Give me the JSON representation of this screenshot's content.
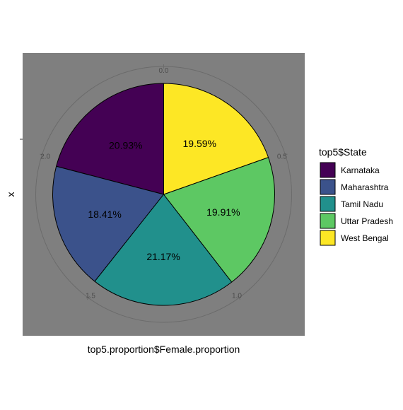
{
  "chart_data": {
    "type": "pie",
    "xlabel": "top5.proportion$Female.proportion",
    "ylabel": "x",
    "legend_title": "top5$State",
    "legend_position": "right",
    "radial_ticks": [
      "0.0",
      "0.5",
      "1.0",
      "1.5",
      "2.0"
    ],
    "slices": [
      {
        "label": "Karnataka",
        "value": 20.93,
        "pct_label": "20.93%",
        "color": "#440154"
      },
      {
        "label": "Maharashtra",
        "value": 18.41,
        "pct_label": "18.41%",
        "color": "#3B528B"
      },
      {
        "label": "Tamil Nadu",
        "value": 21.17,
        "pct_label": "21.17%",
        "color": "#21908C"
      },
      {
        "label": "Uttar Pradesh",
        "value": 19.91,
        "pct_label": "19.91%",
        "color": "#5DC863"
      },
      {
        "label": "West Bengal",
        "value": 19.59,
        "pct_label": "19.59%",
        "color": "#FDE725"
      }
    ],
    "panel_background": "#7F7F7F"
  }
}
